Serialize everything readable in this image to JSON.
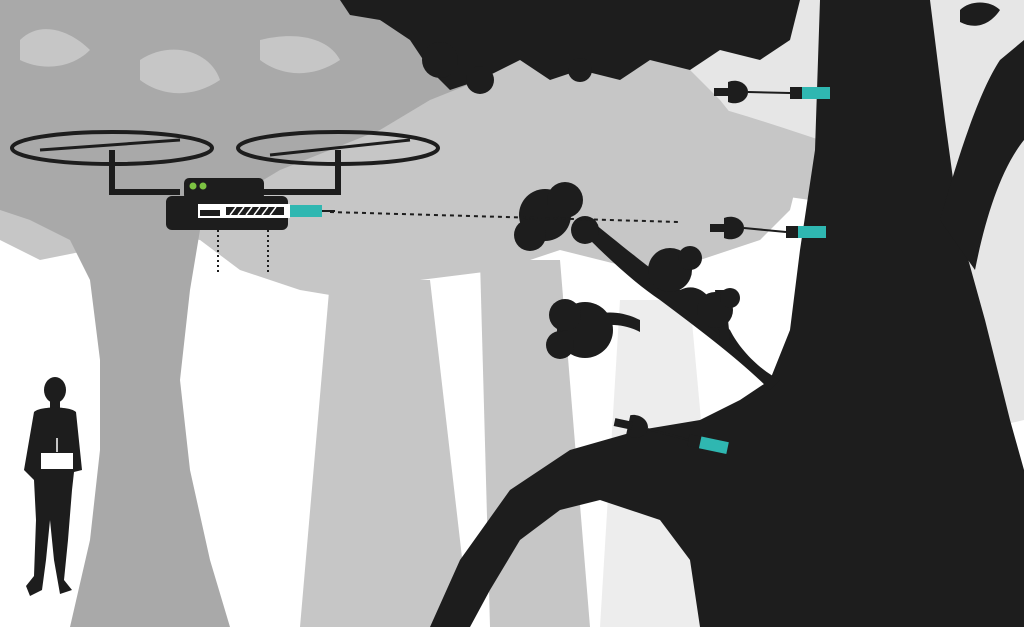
{
  "scene": {
    "colors": {
      "background": "#ffffff",
      "far_foliage": "#e6e6e6",
      "mid_foliage": "#c4c4c4",
      "near_foliage": "#a9a9a9",
      "silhouette": "#1d1d1d",
      "accent": "#2fb7b1",
      "drone_light": "#7cc242"
    },
    "elements": {
      "drone": "quadcopter-drone",
      "operator": "person-with-controller",
      "branch": "sampling-branch",
      "darts": [
        "dart-upper",
        "dart-middle",
        "dart-lower"
      ]
    }
  }
}
